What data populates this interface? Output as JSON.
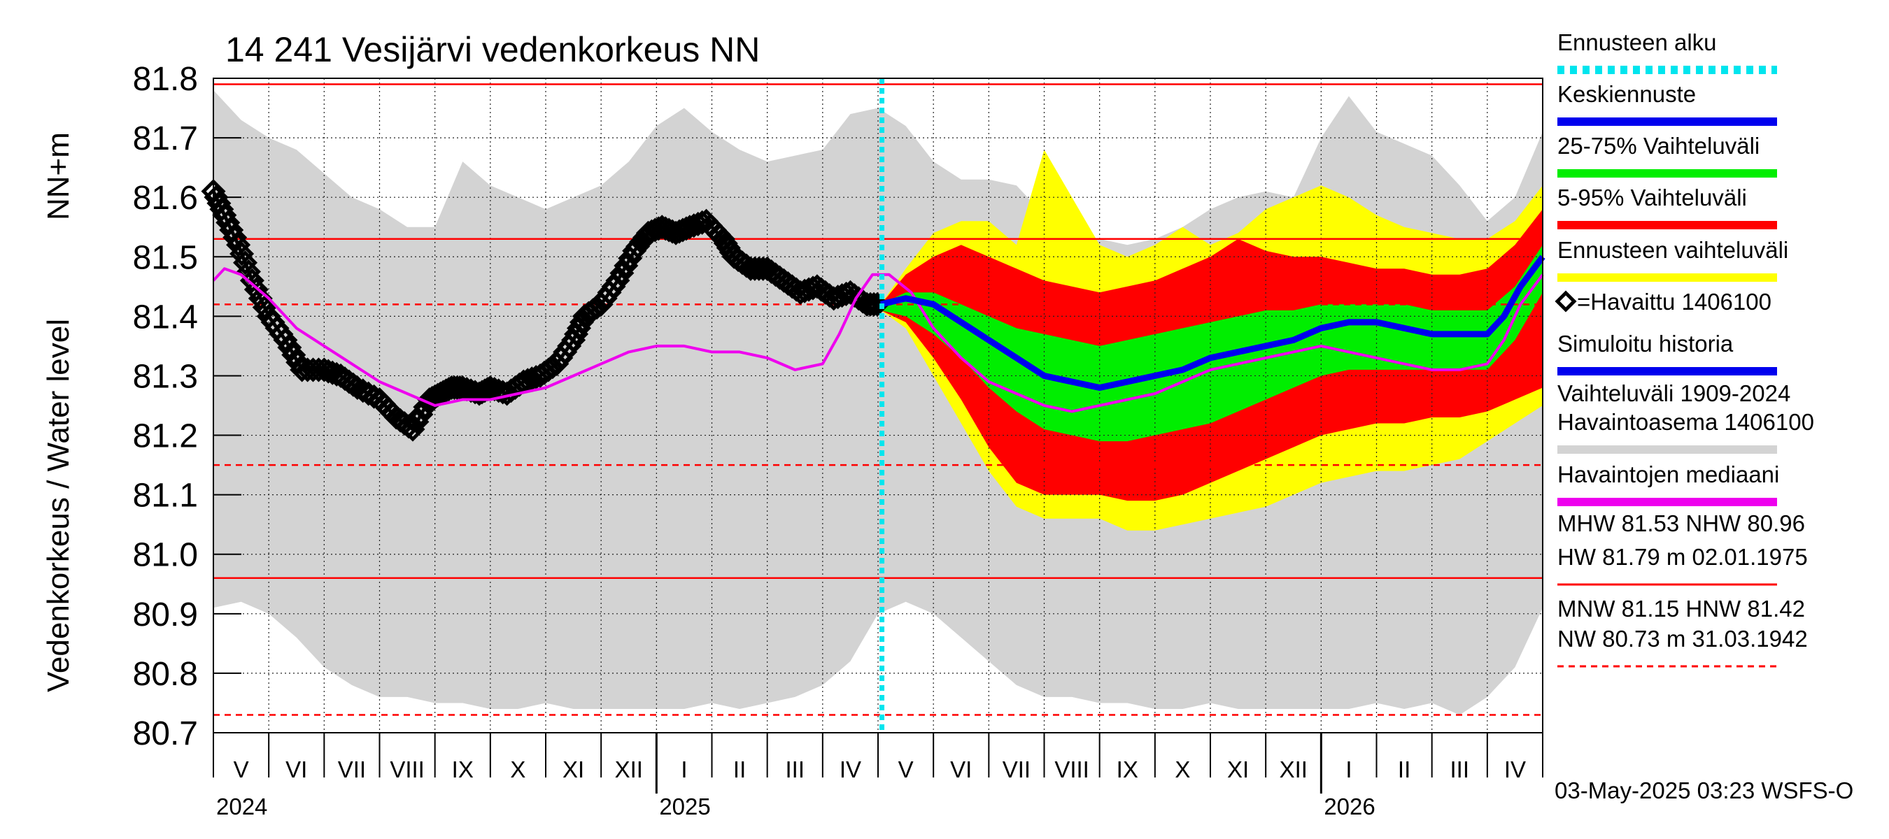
{
  "chart_data": {
    "type": "line",
    "title": "14 241 Vesijärvi vedenkorkeus NN",
    "ylabel_left": "Vedenkorkeus / Water level",
    "ylabel_right": "NN+m",
    "ylim": [
      80.7,
      81.8
    ],
    "yticks": [
      "81.8",
      "81.7",
      "81.6",
      "81.5",
      "81.4",
      "81.3",
      "81.2",
      "81.1",
      "81.0",
      "80.9",
      "80.8",
      "80.7"
    ],
    "x_months": [
      "V",
      "VI",
      "VII",
      "VIII",
      "IX",
      "X",
      "XI",
      "XII",
      "I",
      "II",
      "III",
      "IV",
      "V",
      "VI",
      "VII",
      "VIII",
      "IX",
      "X",
      "XI",
      "XII",
      "I",
      "II",
      "III",
      "IV"
    ],
    "x_years": [
      "2024",
      "2025",
      "2026"
    ],
    "forecast_start_month_index": 12.07,
    "reference_lines": {
      "HW": 81.79,
      "MHW": 81.53,
      "HNW": 81.42,
      "MNW": 81.15,
      "NHW": 80.96,
      "NW": 80.73
    },
    "legend": [
      {
        "label": "Ennusteen alku",
        "color": "#00e5ee",
        "style": "dotted"
      },
      {
        "label": "Keskiennuste",
        "color": "#0000ee",
        "style": "solid"
      },
      {
        "label": "25-75% Vaihteluväli",
        "color": "#00ee00",
        "style": "solid"
      },
      {
        "label": "5-95% Vaihteluväli",
        "color": "#ff0000",
        "style": "solid"
      },
      {
        "label": "Ennusteen vaihteluväli",
        "color": "#ffff00",
        "style": "solid"
      },
      {
        "label": "=Havaittu 1406100",
        "color": "#000000",
        "style": "marker"
      },
      {
        "label": "Simuloitu historia",
        "color": "#0000ee",
        "style": "solid"
      },
      {
        "label": "Vaihteluväli 1909-2024",
        "color": "#d3d3d3",
        "style": "none"
      },
      {
        "label": " Havaintoasema 1406100",
        "color": "#d3d3d3",
        "style": "solid"
      },
      {
        "label": "Havaintojen mediaani",
        "color": "#ee00ee",
        "style": "solid"
      },
      {
        "label": "MHW  81.53 NHW  80.96",
        "color": "#ff0000",
        "style": "none"
      },
      {
        "label": "HW  81.79 m 02.01.1975",
        "color": "#ff0000",
        "style": "solid"
      },
      {
        "label": "MNW  81.15 HNW  81.42",
        "color": "#ff0000",
        "style": "none"
      },
      {
        "label": "NW  80.73 m 31.03.1942",
        "color": "#ff0000",
        "style": "dashed"
      }
    ],
    "series": [
      {
        "name": "Havaittu 1406100",
        "color": "#000000",
        "x": [
          0.0,
          0.2,
          0.45,
          0.7,
          1.0,
          1.3,
          1.6,
          2.0,
          2.3,
          2.6,
          3.0,
          3.3,
          3.6,
          3.9,
          4.1,
          4.3,
          4.5,
          4.8,
          5.0,
          5.3,
          5.6,
          5.9,
          6.2,
          6.5,
          6.7,
          7.0,
          7.3,
          7.6,
          7.85,
          8.1,
          8.35,
          8.6,
          8.9,
          9.2,
          9.4,
          9.7,
          10.0,
          10.3,
          10.6,
          10.9,
          11.2,
          11.5,
          11.8,
          12.05
        ],
        "y": [
          81.61,
          81.57,
          81.52,
          81.46,
          81.4,
          81.36,
          81.31,
          81.31,
          81.3,
          81.28,
          81.26,
          81.23,
          81.21,
          81.26,
          81.27,
          81.28,
          81.28,
          81.27,
          81.28,
          81.27,
          81.29,
          81.3,
          81.32,
          81.36,
          81.4,
          81.42,
          81.46,
          81.51,
          81.54,
          81.55,
          81.54,
          81.55,
          81.56,
          81.53,
          81.5,
          81.48,
          81.48,
          81.46,
          81.44,
          81.45,
          81.43,
          81.44,
          81.42,
          81.42
        ]
      },
      {
        "name": "Havaintojen mediaani",
        "color": "#ee00ee",
        "x": [
          0.0,
          0.2,
          0.5,
          1.0,
          1.5,
          2.0,
          2.5,
          3.0,
          3.5,
          4.0,
          4.5,
          5.0,
          5.5,
          6.0,
          6.5,
          7.0,
          7.5,
          8.0,
          8.5,
          9.0,
          9.5,
          10.0,
          10.5,
          11.0,
          11.3,
          11.6,
          11.9,
          12.2,
          12.6,
          13.0,
          13.5,
          14.0,
          14.5,
          15.0,
          15.5,
          16.0,
          16.5,
          17.0,
          17.5,
          18.0,
          18.5,
          19.0,
          19.5,
          20.0,
          20.5,
          21.0,
          21.5,
          22.0,
          22.5,
          23.0,
          23.3,
          23.6,
          24.0
        ],
        "y": [
          81.46,
          81.48,
          81.47,
          81.43,
          81.38,
          81.35,
          81.32,
          81.29,
          81.27,
          81.25,
          81.26,
          81.26,
          81.27,
          81.28,
          81.3,
          81.32,
          81.34,
          81.35,
          81.35,
          81.34,
          81.34,
          81.33,
          81.31,
          81.32,
          81.37,
          81.43,
          81.47,
          81.47,
          81.44,
          81.38,
          81.33,
          81.29,
          81.27,
          81.25,
          81.24,
          81.25,
          81.26,
          81.27,
          81.29,
          81.31,
          81.32,
          81.33,
          81.34,
          81.35,
          81.34,
          81.33,
          81.32,
          81.31,
          81.31,
          81.32,
          81.36,
          81.42,
          81.47
        ]
      },
      {
        "name": "Keskiennuste",
        "color": "#0000ee",
        "x": [
          12.05,
          12.5,
          13.0,
          13.5,
          14.0,
          14.5,
          15.0,
          15.5,
          16.0,
          16.5,
          17.0,
          17.5,
          18.0,
          18.5,
          19.0,
          19.5,
          20.0,
          20.5,
          21.0,
          21.5,
          22.0,
          22.5,
          23.0,
          23.3,
          23.6,
          24.0
        ],
        "y": [
          81.42,
          81.43,
          81.42,
          81.39,
          81.36,
          81.33,
          81.3,
          81.29,
          81.28,
          81.29,
          81.3,
          81.31,
          81.33,
          81.34,
          81.35,
          81.36,
          81.38,
          81.39,
          81.39,
          81.38,
          81.37,
          81.37,
          81.37,
          81.4,
          81.45,
          81.5
        ]
      }
    ],
    "bands": [
      {
        "name": "Vaihteluväli 1909-2024",
        "color": "#d3d3d3",
        "x": [
          0,
          0.5,
          1,
          1.5,
          2,
          2.5,
          3,
          3.5,
          4,
          4.5,
          5,
          5.5,
          6,
          6.5,
          7,
          7.5,
          8,
          8.5,
          9,
          9.5,
          10,
          10.5,
          11,
          11.5,
          12,
          12.5,
          13,
          13.5,
          14,
          14.5,
          15,
          15.5,
          16,
          16.5,
          17,
          17.5,
          18,
          18.5,
          19,
          19.5,
          20,
          20.5,
          21,
          21.5,
          22,
          22.5,
          23,
          23.5,
          24
        ],
        "upper": [
          81.78,
          81.73,
          81.7,
          81.68,
          81.64,
          81.6,
          81.58,
          81.55,
          81.55,
          81.66,
          81.62,
          81.6,
          81.58,
          81.6,
          81.62,
          81.66,
          81.72,
          81.75,
          81.71,
          81.68,
          81.66,
          81.67,
          81.68,
          81.74,
          81.75,
          81.72,
          81.66,
          81.63,
          81.63,
          81.62,
          81.57,
          81.54,
          81.53,
          81.52,
          81.53,
          81.55,
          81.58,
          81.6,
          81.61,
          81.6,
          81.7,
          81.77,
          81.71,
          81.69,
          81.67,
          81.62,
          81.56,
          81.6,
          81.71
        ],
        "lower": [
          80.91,
          80.92,
          80.9,
          80.86,
          80.81,
          80.78,
          80.76,
          80.76,
          80.75,
          80.75,
          80.74,
          80.74,
          80.75,
          80.74,
          80.74,
          80.74,
          80.74,
          80.74,
          80.75,
          80.74,
          80.75,
          80.76,
          80.78,
          80.82,
          80.9,
          80.92,
          80.9,
          80.86,
          80.82,
          80.78,
          80.76,
          80.76,
          80.75,
          80.75,
          80.74,
          80.74,
          80.75,
          80.74,
          80.74,
          80.74,
          80.74,
          80.74,
          80.75,
          80.74,
          80.75,
          80.73,
          80.76,
          80.81,
          80.91
        ]
      },
      {
        "name": "Ennusteen vaihteluväli",
        "color": "#ffff00",
        "x": [
          12.05,
          12.5,
          13.0,
          13.5,
          14.0,
          14.5,
          15.0,
          15.5,
          16.0,
          16.5,
          17.0,
          17.5,
          18.0,
          18.5,
          19.0,
          19.5,
          20.0,
          20.5,
          21.0,
          21.5,
          22.0,
          22.5,
          23.0,
          23.5,
          24.0
        ],
        "upper": [
          81.42,
          81.48,
          81.54,
          81.56,
          81.56,
          81.52,
          81.68,
          81.6,
          81.52,
          81.5,
          81.52,
          81.55,
          81.52,
          81.54,
          81.58,
          81.6,
          81.62,
          81.6,
          81.57,
          81.55,
          81.54,
          81.53,
          81.53,
          81.56,
          81.62
        ],
        "lower": [
          81.41,
          81.38,
          81.3,
          81.22,
          81.14,
          81.08,
          81.06,
          81.06,
          81.06,
          81.04,
          81.04,
          81.05,
          81.06,
          81.07,
          81.08,
          81.1,
          81.12,
          81.13,
          81.14,
          81.14,
          81.15,
          81.16,
          81.19,
          81.22,
          81.25
        ]
      },
      {
        "name": "5-95% Vaihteluväli",
        "color": "#ff0000",
        "x": [
          12.05,
          12.5,
          13.0,
          13.5,
          14.0,
          14.5,
          15.0,
          15.5,
          16.0,
          16.5,
          17.0,
          17.5,
          18.0,
          18.5,
          19.0,
          19.5,
          20.0,
          20.5,
          21.0,
          21.5,
          22.0,
          22.5,
          23.0,
          23.5,
          24.0
        ],
        "upper": [
          81.42,
          81.47,
          81.5,
          81.52,
          81.5,
          81.48,
          81.46,
          81.45,
          81.44,
          81.45,
          81.46,
          81.48,
          81.5,
          81.53,
          81.51,
          81.5,
          81.5,
          81.49,
          81.48,
          81.48,
          81.47,
          81.47,
          81.48,
          81.52,
          81.58
        ],
        "lower": [
          81.41,
          81.39,
          81.33,
          81.26,
          81.18,
          81.12,
          81.1,
          81.1,
          81.1,
          81.09,
          81.09,
          81.1,
          81.12,
          81.14,
          81.16,
          81.18,
          81.2,
          81.21,
          81.22,
          81.22,
          81.23,
          81.23,
          81.24,
          81.26,
          81.28
        ]
      },
      {
        "name": "25-75% Vaihteluväli",
        "color": "#00ee00",
        "x": [
          12.05,
          12.5,
          13.0,
          13.5,
          14.0,
          14.5,
          15.0,
          15.5,
          16.0,
          16.5,
          17.0,
          17.5,
          18.0,
          18.5,
          19.0,
          19.5,
          20.0,
          20.5,
          21.0,
          21.5,
          22.0,
          22.5,
          23.0,
          23.5,
          24.0
        ],
        "upper": [
          81.42,
          81.44,
          81.44,
          81.42,
          81.4,
          81.38,
          81.37,
          81.36,
          81.35,
          81.36,
          81.37,
          81.38,
          81.39,
          81.4,
          81.41,
          81.41,
          81.42,
          81.42,
          81.42,
          81.42,
          81.41,
          81.41,
          81.41,
          81.45,
          81.52
        ],
        "lower": [
          81.41,
          81.4,
          81.37,
          81.33,
          81.28,
          81.24,
          81.21,
          81.2,
          81.19,
          81.19,
          81.2,
          81.21,
          81.22,
          81.24,
          81.26,
          81.28,
          81.3,
          81.31,
          81.31,
          81.31,
          81.31,
          81.31,
          81.31,
          81.36,
          81.44
        ]
      }
    ],
    "timestamp": "03-May-2025 03:23 WSFS-O"
  }
}
